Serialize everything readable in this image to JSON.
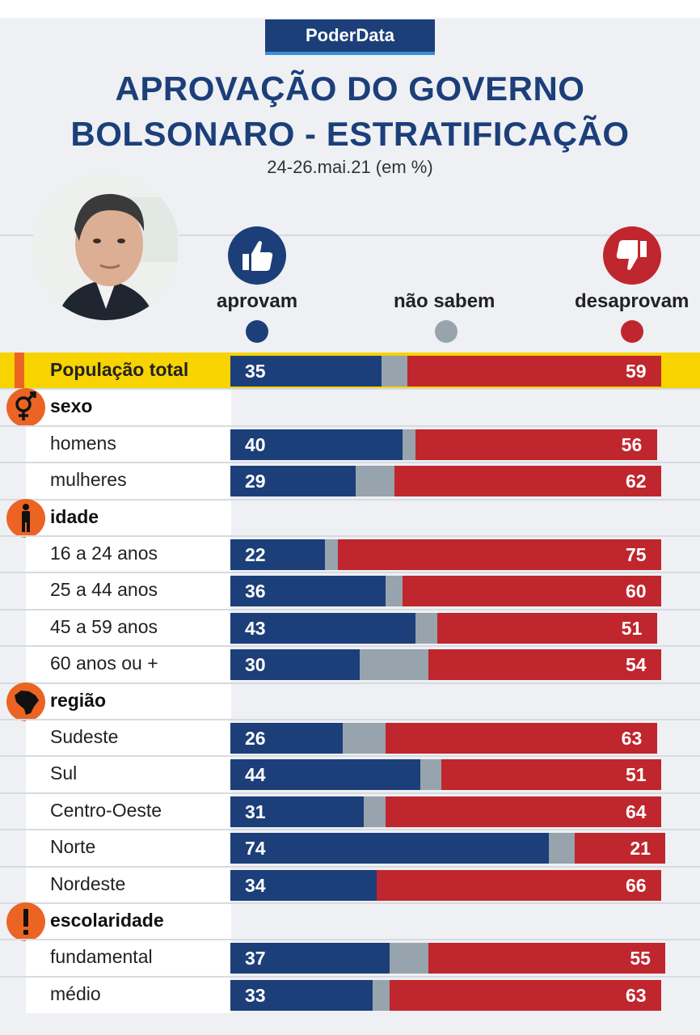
{
  "header": {
    "brand": "PoderData",
    "title_line1": "APROVAÇÃO DO GOVERNO",
    "title_line2": "BOLSONARO - ESTRATIFICAÇÃO",
    "subtitle": "24-26.mai.21 (em %)"
  },
  "legend": {
    "approve": "aprovam",
    "unsure": "não sabem",
    "disapprove": "desaprovam"
  },
  "colors": {
    "approve": "#1c3f7a",
    "unsure": "#97a3ad",
    "disapprove": "#c0262d",
    "highlight": "#f7d300",
    "accent": "#ec6424",
    "title": "#1c3f7a"
  },
  "chart_data": {
    "type": "bar",
    "stacked": true,
    "orientation": "horizontal",
    "title": "APROVAÇÃO DO GOVERNO BOLSONARO - ESTRATIFICAÇÃO",
    "subtitle": "24-26.mai.21 (em %)",
    "series_names": [
      "aprovam",
      "não sabem",
      "desaprovam"
    ],
    "rows": [
      {
        "kind": "total",
        "label": "População total",
        "approve": 35,
        "unsure": 6,
        "disapprove": 59
      },
      {
        "kind": "group",
        "label": "sexo",
        "icon": "gender-icon"
      },
      {
        "kind": "row",
        "label": "homens",
        "approve": 40,
        "unsure": 3,
        "disapprove": 56
      },
      {
        "kind": "row",
        "label": "mulheres",
        "approve": 29,
        "unsure": 9,
        "disapprove": 62
      },
      {
        "kind": "group",
        "label": "idade",
        "icon": "person-icon"
      },
      {
        "kind": "row",
        "label": "16 a 24 anos",
        "approve": 22,
        "unsure": 3,
        "disapprove": 75
      },
      {
        "kind": "row",
        "label": "25 a 44 anos",
        "approve": 36,
        "unsure": 4,
        "disapprove": 60
      },
      {
        "kind": "row",
        "label": "45 a 59 anos",
        "approve": 43,
        "unsure": 5,
        "disapprove": 51
      },
      {
        "kind": "row",
        "label": "60 anos ou +",
        "approve": 30,
        "unsure": 16,
        "disapprove": 54
      },
      {
        "kind": "group",
        "label": "região",
        "icon": "brazil-map-icon"
      },
      {
        "kind": "row",
        "label": "Sudeste",
        "approve": 26,
        "unsure": 10,
        "disapprove": 63
      },
      {
        "kind": "row",
        "label": "Sul",
        "approve": 44,
        "unsure": 5,
        "disapprove": 51
      },
      {
        "kind": "row",
        "label": "Centro-Oeste",
        "approve": 31,
        "unsure": 5,
        "disapprove": 64
      },
      {
        "kind": "row",
        "label": "Norte",
        "approve": 74,
        "unsure": 6,
        "disapprove": 21
      },
      {
        "kind": "row",
        "label": "Nordeste",
        "approve": 34,
        "unsure": 0,
        "disapprove": 66
      },
      {
        "kind": "group",
        "label": "escolaridade",
        "icon": "exclamation-icon"
      },
      {
        "kind": "row",
        "label": "fundamental",
        "approve": 37,
        "unsure": 9,
        "disapprove": 55
      },
      {
        "kind": "row",
        "label": "médio",
        "approve": 33,
        "unsure": 4,
        "disapprove": 63
      }
    ]
  }
}
